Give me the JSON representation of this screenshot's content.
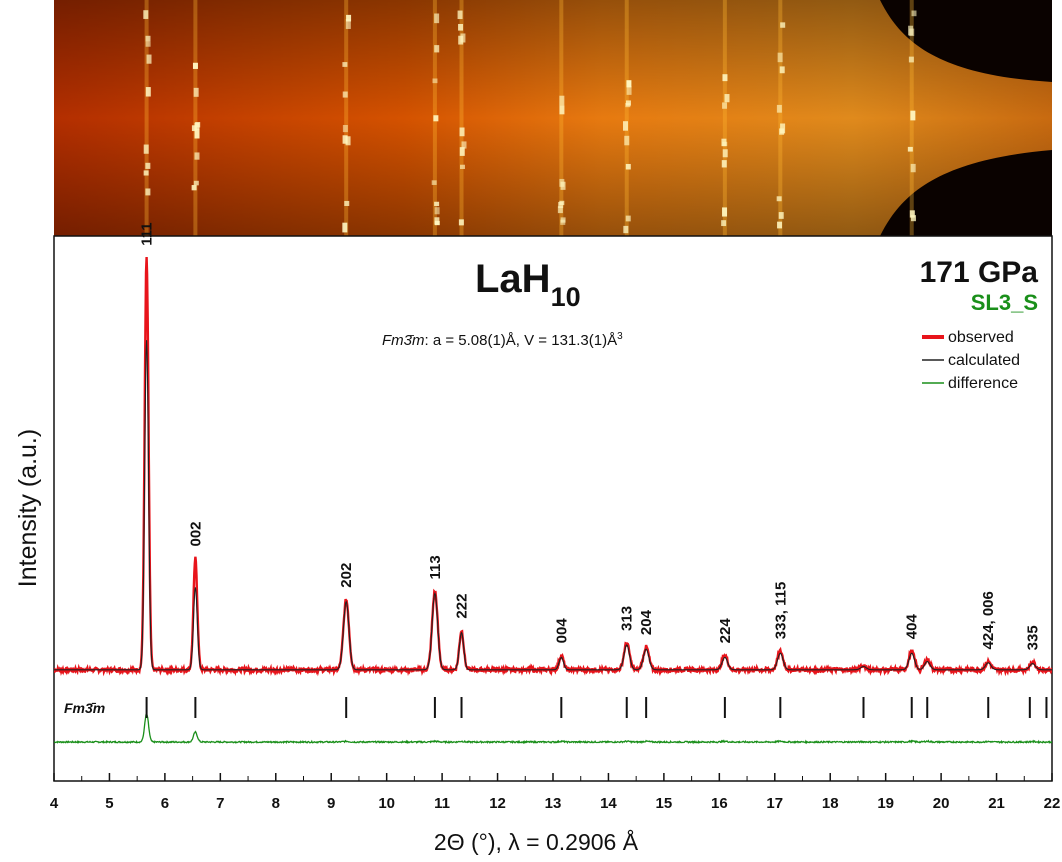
{
  "chart_data": {
    "type": "line",
    "title": "LaH",
    "title_subscript": "10",
    "subtitle_italic": "Fm3̄m",
    "subtitle_rest": ": a = 5.08(1)Å, V = 131.3(1)Å",
    "subtitle_superscript": "3",
    "pressure": "171 GPa",
    "sample": "SL3_S",
    "xlabel": "2Θ (°), λ = 0.2906 Å",
    "ylabel": "Intensity (a.u.)",
    "xlim": [
      4,
      22
    ],
    "xticks": [
      4,
      5,
      6,
      7,
      8,
      9,
      10,
      11,
      12,
      13,
      14,
      15,
      16,
      17,
      18,
      19,
      20,
      21,
      22
    ],
    "ylim": [
      0,
      100
    ],
    "grid": false,
    "legend_placement": "top-right",
    "legend": [
      {
        "name": "observed",
        "color": "#e8141b"
      },
      {
        "name": "calculated",
        "color": "#222222"
      },
      {
        "name": "difference",
        "color": "#1a8f1a"
      }
    ],
    "background_level": 2,
    "peaks": [
      {
        "pos": 5.67,
        "obs": 100,
        "calc": 80,
        "width": 0.035,
        "label": "111"
      },
      {
        "pos": 6.55,
        "obs": 27,
        "calc": 20,
        "width": 0.035,
        "label": "002"
      },
      {
        "pos": 9.27,
        "obs": 17,
        "calc": 16.5,
        "width": 0.05,
        "label": "202"
      },
      {
        "pos": 10.87,
        "obs": 19,
        "calc": 18.5,
        "width": 0.05,
        "label": "113"
      },
      {
        "pos": 11.35,
        "obs": 9.5,
        "calc": 9,
        "width": 0.04,
        "label": "222"
      },
      {
        "pos": 13.15,
        "obs": 3.5,
        "calc": 3,
        "width": 0.04,
        "label": "004"
      },
      {
        "pos": 14.33,
        "obs": 6.5,
        "calc": 6,
        "width": 0.05,
        "label": "313"
      },
      {
        "pos": 14.68,
        "obs": 5.5,
        "calc": 5,
        "width": 0.05,
        "label": "204"
      },
      {
        "pos": 16.1,
        "obs": 3.5,
        "calc": 3,
        "width": 0.05,
        "label": "224"
      },
      {
        "pos": 17.1,
        "obs": 4.5,
        "calc": 4,
        "width": 0.05,
        "label": "333, 115"
      },
      {
        "pos": 18.6,
        "obs": 1,
        "calc": 0.8,
        "width": 0.05,
        "label": ""
      },
      {
        "pos": 19.47,
        "obs": 4.5,
        "calc": 4,
        "width": 0.05,
        "label": "404"
      },
      {
        "pos": 19.75,
        "obs": 2.5,
        "calc": 2,
        "width": 0.05,
        "label": ""
      },
      {
        "pos": 20.85,
        "obs": 2,
        "calc": 1.7,
        "width": 0.05,
        "label": "424, 006"
      },
      {
        "pos": 21.65,
        "obs": 1.8,
        "calc": 1.5,
        "width": 0.05,
        "label": "335"
      }
    ],
    "reflection_marker_label_italic": "Fm3̄m",
    "reflection_positions": [
      5.67,
      6.55,
      9.27,
      10.87,
      11.35,
      13.15,
      14.33,
      14.68,
      16.1,
      17.1,
      18.6,
      19.47,
      19.75,
      20.85,
      21.6,
      21.9
    ]
  },
  "detector_image": {
    "colors": {
      "dark": "#1a0500",
      "mid": "#d24b00",
      "bright": "#ffb830",
      "spot": "#fff6c0"
    },
    "ring_positions_2theta": [
      5.67,
      6.55,
      9.27,
      10.87,
      11.35,
      13.15,
      14.33,
      16.1,
      17.1,
      19.47
    ]
  }
}
